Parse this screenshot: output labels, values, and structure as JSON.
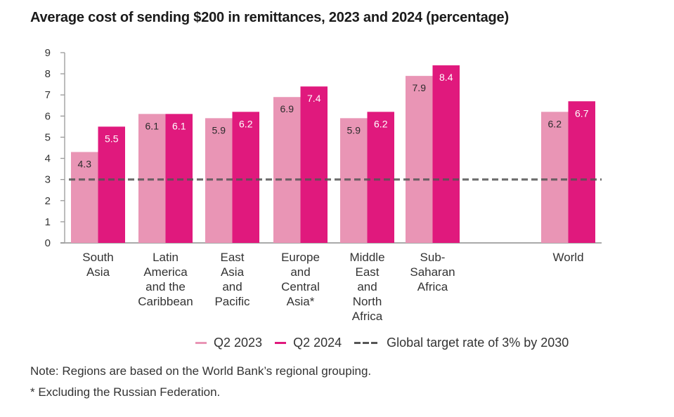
{
  "chart_data": {
    "type": "bar",
    "title": "Average cost of sending $200 in remittances, 2023 and 2024 (percentage)",
    "xlabel": "",
    "ylabel": "",
    "ylim": [
      0,
      9
    ],
    "yticks": [
      "0",
      "1",
      "2",
      "3",
      "4",
      "5",
      "6",
      "7",
      "8",
      "9"
    ],
    "grid": false,
    "categories": [
      [
        "South",
        "Asia"
      ],
      [
        "Latin",
        "America",
        "and the",
        "Caribbean"
      ],
      [
        "East",
        "Asia",
        "and",
        "Pacific"
      ],
      [
        "Europe",
        "and",
        "Central",
        "Asia*"
      ],
      [
        "Middle",
        "East",
        "and",
        "North",
        "Africa"
      ],
      [
        "Sub-",
        "Saharan",
        "Africa"
      ],
      [
        "World"
      ]
    ],
    "series": [
      {
        "name": "Q2 2023",
        "color": "#e995b5",
        "label_color": "#2b2b2b",
        "values": [
          4.3,
          6.1,
          5.9,
          6.9,
          5.9,
          7.9,
          6.2
        ]
      },
      {
        "name": "Q2 2024",
        "color": "#e0197d",
        "label_color": "#ffffff",
        "values": [
          5.5,
          6.1,
          6.2,
          7.4,
          6.2,
          8.4,
          6.7
        ]
      }
    ],
    "reference_line": {
      "name": "Global target rate of 3% by 2030",
      "value": 3,
      "style": "dashed",
      "color": "#555555"
    },
    "legend": {
      "placement": "bottom",
      "entries": [
        "Q2 2023",
        "Q2 2024",
        "Global target rate of 3% by 2030"
      ]
    }
  },
  "notes": {
    "line1": "Note: Regions are based on the World Bank’s regional grouping.",
    "line2": "* Excluding the Russian Federation."
  }
}
